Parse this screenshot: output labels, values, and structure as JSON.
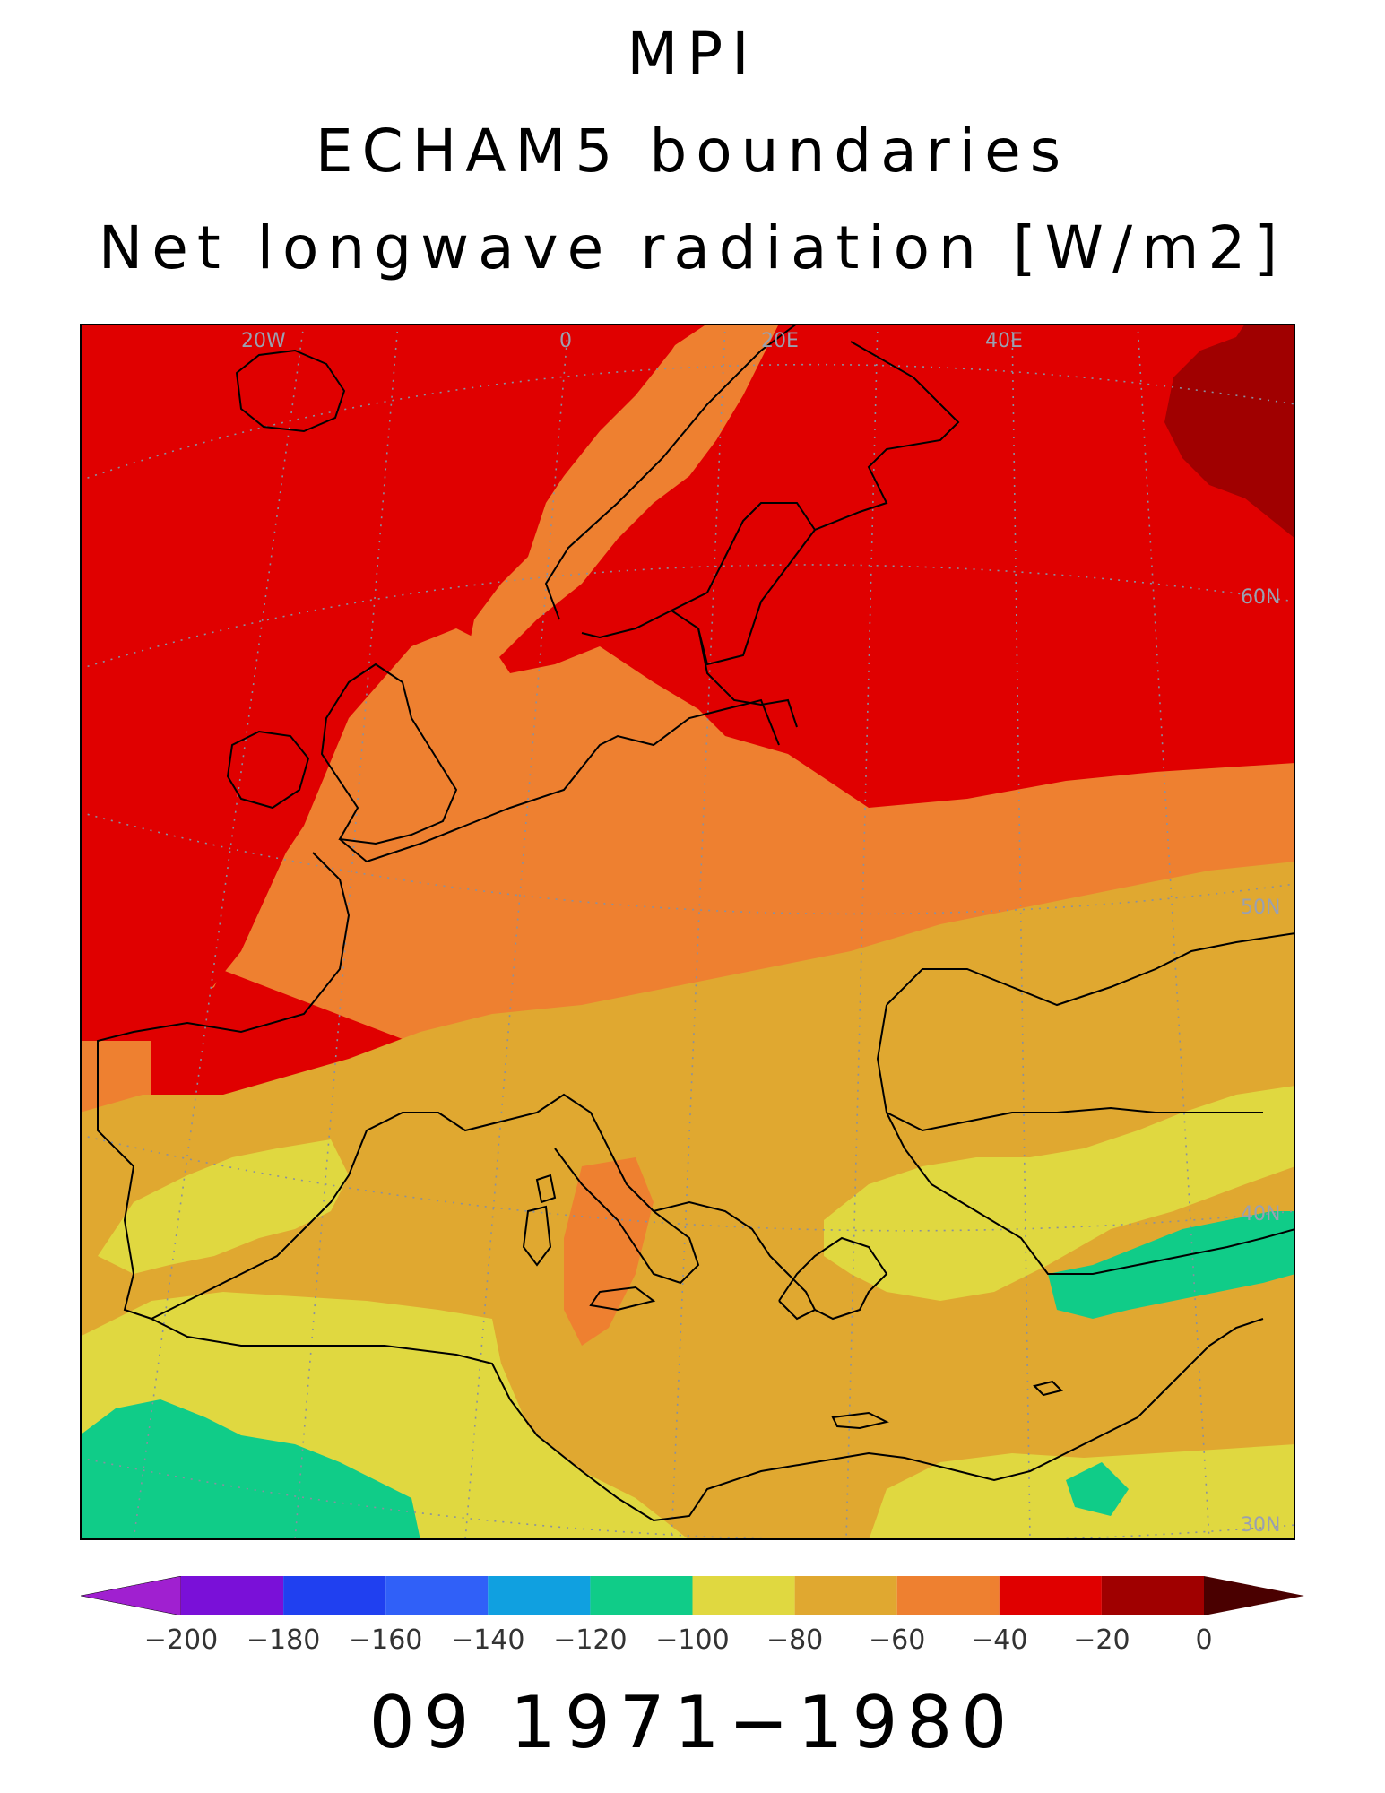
{
  "titles": {
    "line1": "MPI",
    "line2": "ECHAM5 boundaries",
    "line3": "Net longwave radiation [W/m2]"
  },
  "period_label": "09 1971−1980",
  "graticule_labels": {
    "lon": [
      "20W",
      "0",
      "20E",
      "40E"
    ],
    "lat": [
      "60N",
      "50N",
      "40N",
      "30N"
    ]
  },
  "colorbar": {
    "tick_labels": [
      "−200",
      "−180",
      "−160",
      "−140",
      "−120",
      "−100",
      "−80",
      "−60",
      "−40",
      "−20",
      "0"
    ],
    "colors": [
      "#a020d0",
      "#7a10d8",
      "#2040f0",
      "#3060f8",
      "#10a0e0",
      "#10cc88",
      "#e0d840",
      "#e0a830",
      "#ee8030",
      "#e00000",
      "#a00000",
      "#4a0000"
    ]
  },
  "field_colors": {
    "band_m40_m20": "#e00000",
    "band_m20_0": "#a00000",
    "band_m60_m40": "#ee8030",
    "band_m80_m60": "#e0a830",
    "band_m100_m80": "#e0d840",
    "band_m120_m100": "#10cc88",
    "coast": "#000000",
    "graticule": "#8890a0"
  }
}
